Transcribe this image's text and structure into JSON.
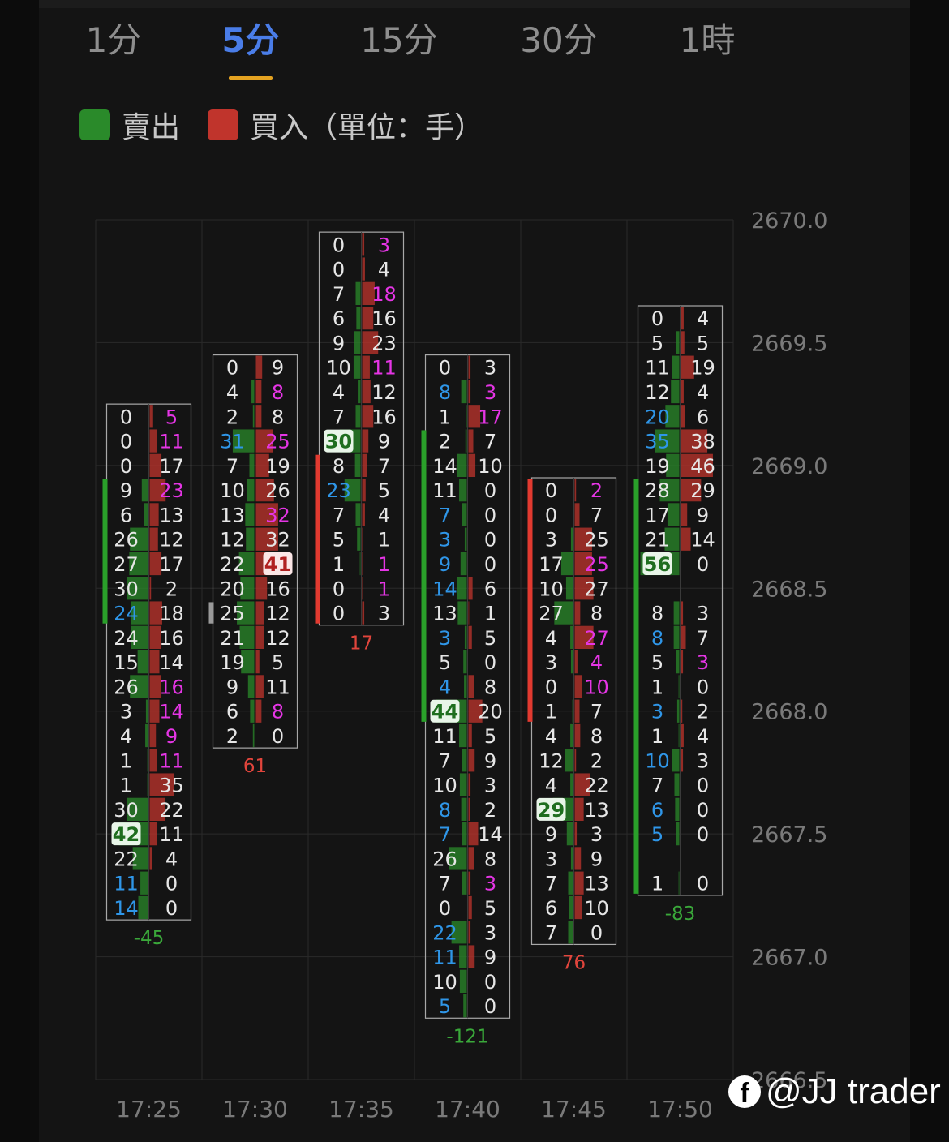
{
  "tabs": [
    {
      "label": "1分",
      "active": false
    },
    {
      "label": "5分",
      "active": true
    },
    {
      "label": "15分",
      "active": false
    },
    {
      "label": "30分",
      "active": false
    },
    {
      "label": "1時",
      "active": false
    }
  ],
  "legend": {
    "sell_label": "賣出",
    "buy_label": "買入（單位：手）",
    "sell_color": "#2a8a2a",
    "buy_color": "#c0342c"
  },
  "watermark": "@JJ trader",
  "chart_data": {
    "type": "footprint",
    "ylim": [
      2666.5,
      2670.0
    ],
    "y_ticks": [
      "2670.0",
      "2669.5",
      "2669.0",
      "2668.5",
      "2668.0",
      "2667.5",
      "2667.0",
      "2666.5"
    ],
    "x_labels": [
      "17:25",
      "17:30",
      "17:35",
      "17:40",
      "17:45",
      "17:50"
    ],
    "tick_size": 0.1,
    "colors": {
      "sell": "#2a8a2a",
      "buy": "#c0342c",
      "text": "#e6e6e6",
      "blue": "#2f96e8",
      "magenta": "#e535e5",
      "delta_pos": "#e2453c",
      "delta_neg": "#3aa83a"
    },
    "bars": [
      {
        "time": "17:25",
        "top": 2669.2,
        "delta": "-45",
        "rows": [
          {
            "s": "0",
            "b": "5",
            "bc": "m"
          },
          {
            "s": "0",
            "b": "11",
            "bc": "m"
          },
          {
            "s": "0",
            "b": "17"
          },
          {
            "s": "9",
            "b": "23",
            "bc": "m"
          },
          {
            "s": "6",
            "b": "13"
          },
          {
            "s": "26",
            "b": "12"
          },
          {
            "s": "27",
            "b": "17"
          },
          {
            "s": "30",
            "b": "2"
          },
          {
            "s": "24",
            "b": "18",
            "sc": "b"
          },
          {
            "s": "24",
            "b": "16"
          },
          {
            "s": "15",
            "b": "14"
          },
          {
            "s": "26",
            "b": "16",
            "bc": "m"
          },
          {
            "s": "3",
            "b": "14",
            "bc": "m"
          },
          {
            "s": "4",
            "b": "9",
            "bc": "m"
          },
          {
            "s": "1",
            "b": "11",
            "bc": "m"
          },
          {
            "s": "1",
            "b": "35"
          },
          {
            "s": "30",
            "b": "22"
          },
          {
            "s": "42",
            "b": "11",
            "sh": 1
          },
          {
            "s": "22",
            "b": "4"
          },
          {
            "s": "11",
            "b": "0",
            "sc": "b"
          },
          {
            "s": "14",
            "b": "0",
            "sc": "b"
          }
        ],
        "range_bar": {
          "from": 3,
          "to": 9,
          "color": "sell"
        }
      },
      {
        "time": "17:30",
        "top": 2669.4,
        "delta": "61",
        "rows": [
          {
            "s": "0",
            "b": "9"
          },
          {
            "s": "4",
            "b": "8",
            "bc": "m"
          },
          {
            "s": "2",
            "b": "8"
          },
          {
            "s": "31",
            "b": "25",
            "sc": "b",
            "bc": "m"
          },
          {
            "s": "7",
            "b": "19"
          },
          {
            "s": "10",
            "b": "26"
          },
          {
            "s": "13",
            "b": "32",
            "bc": "m"
          },
          {
            "s": "12",
            "b": "32"
          },
          {
            "s": "22",
            "b": "41",
            "bh": 1
          },
          {
            "s": "20",
            "b": "16"
          },
          {
            "s": "25",
            "b": "12"
          },
          {
            "s": "21",
            "b": "12"
          },
          {
            "s": "19",
            "b": "5"
          },
          {
            "s": "9",
            "b": "11"
          },
          {
            "s": "6",
            "b": "8",
            "bc": "m"
          },
          {
            "s": "2",
            "b": "0"
          }
        ],
        "range_bar": {
          "from": 10,
          "to": 11,
          "color": "grey"
        }
      },
      {
        "time": "17:35",
        "top": 2669.9,
        "delta": "17",
        "rows": [
          {
            "s": "0",
            "b": "3",
            "bc": "m"
          },
          {
            "s": "0",
            "b": "4"
          },
          {
            "s": "7",
            "b": "18",
            "bc": "m"
          },
          {
            "s": "6",
            "b": "16"
          },
          {
            "s": "9",
            "b": "23"
          },
          {
            "s": "10",
            "b": "11",
            "bc": "m"
          },
          {
            "s": "4",
            "b": "12"
          },
          {
            "s": "7",
            "b": "16"
          },
          {
            "s": "30",
            "b": "9",
            "sh": 1
          },
          {
            "s": "8",
            "b": "7"
          },
          {
            "s": "23",
            "b": "5",
            "sc": "b"
          },
          {
            "s": "7",
            "b": "4"
          },
          {
            "s": "5",
            "b": "1"
          },
          {
            "s": "1",
            "b": "1",
            "bc": "m"
          },
          {
            "s": "0",
            "b": "1",
            "bc": "m"
          },
          {
            "s": "0",
            "b": "3"
          }
        ],
        "range_bar": {
          "from": 9,
          "to": 16,
          "color": "buy"
        }
      },
      {
        "time": "17:40",
        "top": 2669.4,
        "delta": "-121",
        "rows": [
          {
            "s": "0",
            "b": "3"
          },
          {
            "s": "8",
            "b": "3",
            "sc": "b",
            "bc": "m"
          },
          {
            "s": "1",
            "b": "17",
            "bc": "m"
          },
          {
            "s": "2",
            "b": "7"
          },
          {
            "s": "14",
            "b": "10"
          },
          {
            "s": "11",
            "b": "0"
          },
          {
            "s": "7",
            "b": "0",
            "sc": "b"
          },
          {
            "s": "3",
            "b": "0",
            "sc": "b"
          },
          {
            "s": "9",
            "b": "0",
            "sc": "b"
          },
          {
            "s": "14",
            "b": "6",
            "sc": "b"
          },
          {
            "s": "13",
            "b": "1"
          },
          {
            "s": "3",
            "b": "5",
            "sc": "b"
          },
          {
            "s": "5",
            "b": "0"
          },
          {
            "s": "4",
            "b": "8",
            "sc": "b"
          },
          {
            "s": "44",
            "b": "20",
            "sh": 1
          },
          {
            "s": "11",
            "b": "5"
          },
          {
            "s": "7",
            "b": "9"
          },
          {
            "s": "10",
            "b": "3"
          },
          {
            "s": "8",
            "b": "2",
            "sc": "b"
          },
          {
            "s": "7",
            "b": "14",
            "sc": "b"
          },
          {
            "s": "26",
            "b": "8"
          },
          {
            "s": "7",
            "b": "3",
            "bc": "m"
          },
          {
            "s": "0",
            "b": "5"
          },
          {
            "s": "22",
            "b": "3",
            "sc": "b"
          },
          {
            "s": "11",
            "b": "9",
            "sc": "b"
          },
          {
            "s": "10",
            "b": "0"
          },
          {
            "s": "5",
            "b": "0",
            "sc": "b"
          }
        ],
        "range_bar": {
          "from": 3,
          "to": 15,
          "color": "sell"
        }
      },
      {
        "time": "17:45",
        "top": 2668.9,
        "delta": "76",
        "rows": [
          {
            "s": "0",
            "b": "2",
            "bc": "m"
          },
          {
            "s": "0",
            "b": "7"
          },
          {
            "s": "3",
            "b": "25"
          },
          {
            "s": "17",
            "b": "25",
            "bc": "m"
          },
          {
            "s": "10",
            "b": "27"
          },
          {
            "s": "27",
            "b": "8"
          },
          {
            "s": "4",
            "b": "27",
            "bc": "m"
          },
          {
            "s": "3",
            "b": "4",
            "bc": "m"
          },
          {
            "s": "0",
            "b": "10",
            "bc": "m"
          },
          {
            "s": "1",
            "b": "7"
          },
          {
            "s": "4",
            "b": "8"
          },
          {
            "s": "12",
            "b": "2"
          },
          {
            "s": "4",
            "b": "22"
          },
          {
            "s": "29",
            "b": "13",
            "sh": 1
          },
          {
            "s": "9",
            "b": "3"
          },
          {
            "s": "3",
            "b": "9"
          },
          {
            "s": "7",
            "b": "13"
          },
          {
            "s": "6",
            "b": "10"
          },
          {
            "s": "7",
            "b": "0"
          }
        ],
        "range_bar": {
          "from": 0,
          "to": 10,
          "color": "buy"
        }
      },
      {
        "time": "17:50",
        "top": 2669.6,
        "delta": "-83",
        "rows": [
          {
            "s": "0",
            "b": "4"
          },
          {
            "s": "5",
            "b": "5"
          },
          {
            "s": "11",
            "b": "19"
          },
          {
            "s": "12",
            "b": "4"
          },
          {
            "s": "20",
            "b": "6",
            "sc": "b"
          },
          {
            "s": "35",
            "b": "38",
            "sc": "b"
          },
          {
            "s": "19",
            "b": "46"
          },
          {
            "s": "28",
            "b": "29"
          },
          {
            "s": "17",
            "b": "9"
          },
          {
            "s": "21",
            "b": "14"
          },
          {
            "s": "56",
            "b": "0",
            "sh": 1
          },
          {
            "s": "",
            "b": ""
          },
          {
            "s": "8",
            "b": "3"
          },
          {
            "s": "8",
            "b": "7",
            "sc": "b"
          },
          {
            "s": "5",
            "b": "3",
            "bc": "m"
          },
          {
            "s": "1",
            "b": "0"
          },
          {
            "s": "3",
            "b": "2",
            "sc": "b"
          },
          {
            "s": "1",
            "b": "4"
          },
          {
            "s": "10",
            "b": "3",
            "sc": "b"
          },
          {
            "s": "7",
            "b": "0"
          },
          {
            "s": "6",
            "b": "0",
            "sc": "b"
          },
          {
            "s": "5",
            "b": "0",
            "sc": "b"
          },
          {
            "s": "",
            "b": ""
          },
          {
            "s": "1",
            "b": "0"
          }
        ],
        "range_bar": {
          "from": 7,
          "to": 24,
          "color": "sell"
        }
      }
    ]
  }
}
